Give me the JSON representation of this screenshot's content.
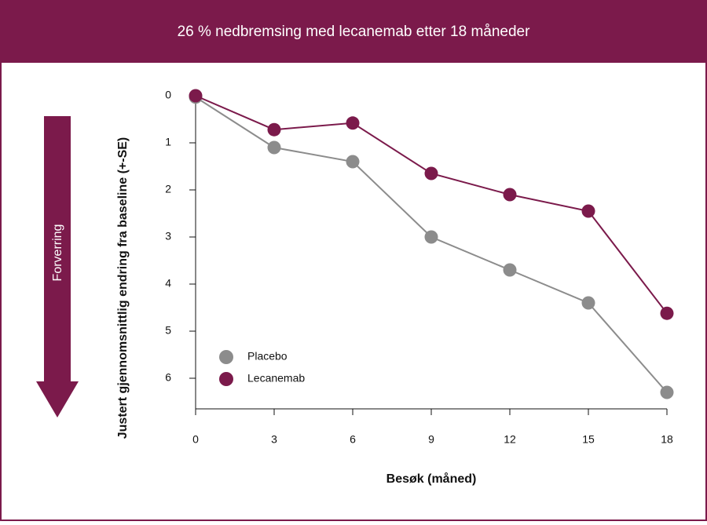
{
  "chart_data": {
    "type": "line",
    "title": "26 % nedbremsing med lecanemab etter 18 måneder",
    "annotation": "Forverring",
    "y_label": "Justert gjennomsnittlig endring fra baseline (+-SE)",
    "x_label": "Besøk (måned)",
    "x": [
      0,
      3,
      6,
      9,
      12,
      15,
      18
    ],
    "series": [
      {
        "name": "Placebo",
        "color": "#8c8c8c",
        "values": [
          0.03,
          1.1,
          1.4,
          3.0,
          3.7,
          4.4,
          6.3
        ]
      },
      {
        "name": "Lecanemab",
        "color": "#7b1a4b",
        "values": [
          0,
          0.72,
          0.58,
          1.65,
          2.1,
          2.45,
          4.62
        ]
      }
    ],
    "xlim": [
      0,
      18
    ],
    "xticks": [
      0,
      3,
      6,
      9,
      12,
      15,
      18
    ],
    "ylim": [
      -0.1,
      6.65
    ],
    "yticks": [
      0,
      1,
      2,
      3,
      4,
      5,
      6
    ],
    "y_inverted": true,
    "legend": "lower-left"
  }
}
